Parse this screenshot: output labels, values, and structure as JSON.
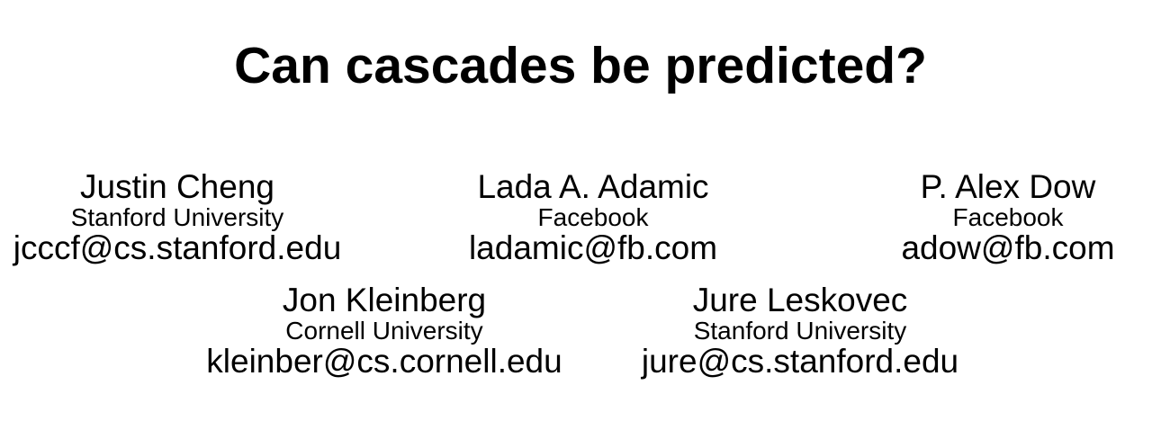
{
  "paper": {
    "title": "Can cascades be predicted?",
    "authors": [
      {
        "name": "Justin Cheng",
        "affiliation": "Stanford University",
        "email": "jcccf@cs.stanford.edu"
      },
      {
        "name": "Lada A. Adamic",
        "affiliation": "Facebook",
        "email": "ladamic@fb.com"
      },
      {
        "name": "P. Alex Dow",
        "affiliation": "Facebook",
        "email": "adow@fb.com"
      },
      {
        "name": "Jon Kleinberg",
        "affiliation": "Cornell University",
        "email": "kleinber@cs.cornell.edu"
      },
      {
        "name": "Jure Leskovec",
        "affiliation": "Stanford University",
        "email": "jure@cs.stanford.edu"
      }
    ]
  }
}
